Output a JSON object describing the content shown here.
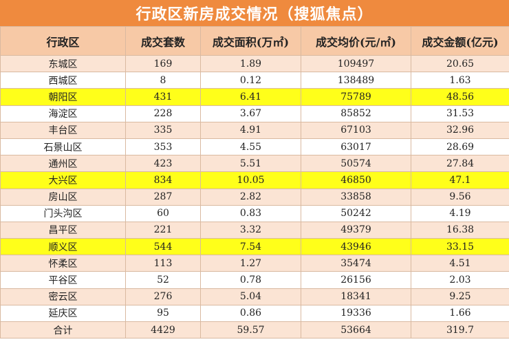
{
  "header": {
    "title": "行政区新房成交情况（搜狐焦点）"
  },
  "table": {
    "columns": [
      "行政区",
      "成交套数",
      "成交面积(万㎡)",
      "成交均价(元/㎡)",
      "成交金额(亿元)"
    ],
    "rows": [
      [
        "东城区",
        169,
        1.89,
        109497,
        20.65
      ],
      [
        "西城区",
        8,
        0.12,
        138489,
        1.63
      ],
      [
        "朝阳区",
        431,
        6.41,
        75789,
        48.56
      ],
      [
        "海淀区",
        228,
        3.67,
        85852,
        31.53
      ],
      [
        "丰台区",
        335,
        4.91,
        67103,
        32.96
      ],
      [
        "石景山区",
        353,
        4.55,
        63017,
        28.69
      ],
      [
        "通州区",
        423,
        5.51,
        50574,
        27.84
      ],
      [
        "大兴区",
        834,
        10.05,
        46850,
        47.1
      ],
      [
        "房山区",
        287,
        2.82,
        33858,
        9.56
      ],
      [
        "门头沟区",
        60,
        0.83,
        50242,
        4.19
      ],
      [
        "昌平区",
        221,
        3.32,
        49379,
        16.38
      ],
      [
        "顺义区",
        544,
        7.54,
        43946,
        33.15
      ],
      [
        "怀柔区",
        113,
        1.27,
        35474,
        4.51
      ],
      [
        "平谷区",
        52,
        0.78,
        26156,
        2.03
      ],
      [
        "密云区",
        276,
        5.04,
        18341,
        9.25
      ],
      [
        "延庆区",
        95,
        0.86,
        19336,
        1.66
      ],
      [
        "合计",
        4429,
        59.57,
        53664,
        319.7
      ]
    ]
  }
}
